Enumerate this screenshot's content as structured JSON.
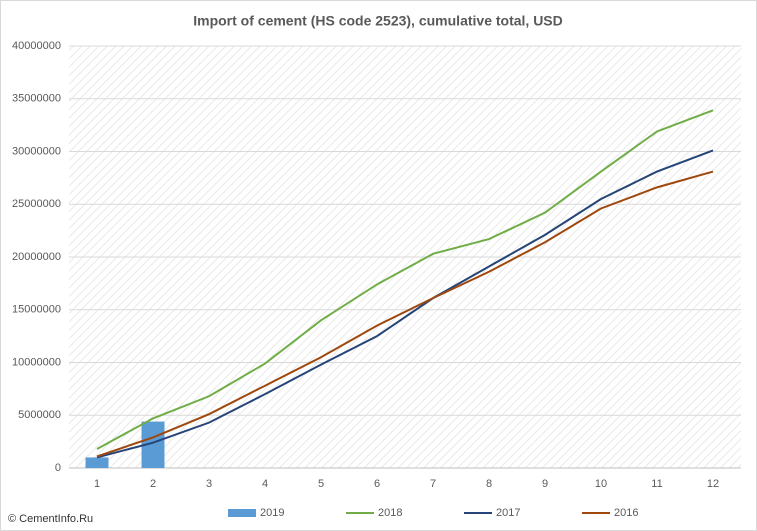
{
  "chart_data": {
    "type": "combo",
    "title": "Import of cement (HS code 2523), cumulative total, USD",
    "categories": [
      "1",
      "2",
      "3",
      "4",
      "5",
      "6",
      "7",
      "8",
      "9",
      "10",
      "11",
      "12"
    ],
    "series": [
      {
        "name": "2019",
        "type": "bar",
        "color": "#5b9bd5",
        "values": [
          1000000,
          4400000,
          null,
          null,
          null,
          null,
          null,
          null,
          null,
          null,
          null,
          null
        ]
      },
      {
        "name": "2018",
        "type": "line",
        "color": "#70ad47",
        "values": [
          1800000,
          4700000,
          6800000,
          9900000,
          14000000,
          17400000,
          20300000,
          21700000,
          24200000,
          28100000,
          31900000,
          33900000
        ]
      },
      {
        "name": "2017",
        "type": "line",
        "color": "#264478",
        "values": [
          1000000,
          2400000,
          4300000,
          7000000,
          9800000,
          12500000,
          16100000,
          19100000,
          22100000,
          25500000,
          28100000,
          30100000
        ]
      },
      {
        "name": "2016",
        "type": "line",
        "color": "#9e480e",
        "values": [
          1100000,
          2900000,
          5100000,
          7800000,
          10500000,
          13500000,
          16100000,
          18600000,
          21400000,
          24600000,
          26600000,
          28100000
        ]
      }
    ],
    "ylim": [
      0,
      40000000
    ],
    "yticks": [
      0,
      5000000,
      10000000,
      15000000,
      20000000,
      25000000,
      30000000,
      35000000,
      40000000
    ],
    "grid": true,
    "legend": "bottom",
    "watermark": "© CementInfo.Ru"
  }
}
